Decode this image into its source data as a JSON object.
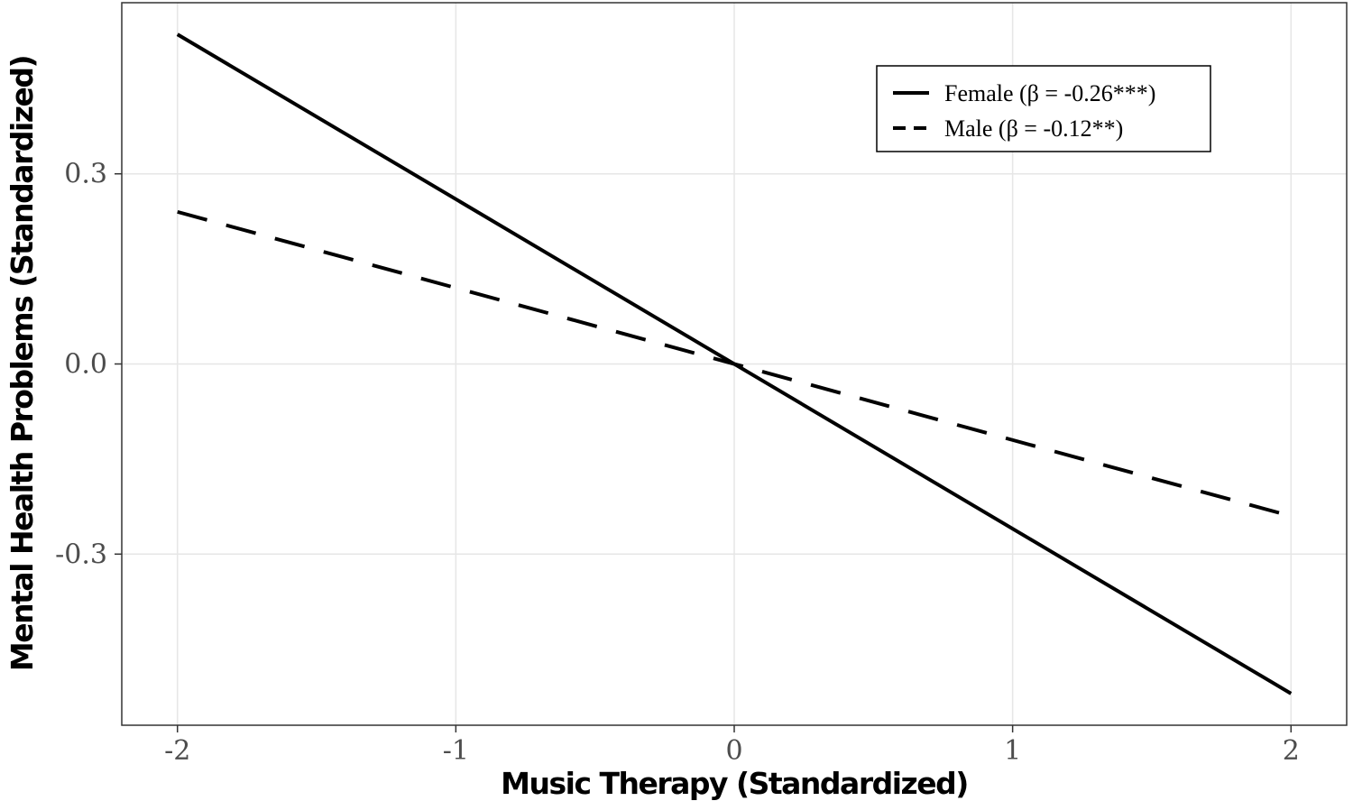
{
  "chart_data": {
    "type": "line",
    "xlabel": "Music Therapy (Standardized)",
    "ylabel": "Mental Health Problems (Standardized)",
    "xlim": [
      -2.2,
      2.2
    ],
    "ylim": [
      -0.57,
      0.57
    ],
    "x_ticks": [
      -2,
      -1,
      0,
      1,
      2
    ],
    "x_tick_labels": [
      "-2",
      "-1",
      "0",
      "1",
      "2"
    ],
    "y_ticks": [
      -0.3,
      0.0,
      0.3
    ],
    "y_tick_labels": [
      "-0.3",
      "0.0",
      "0.3"
    ],
    "grid": true,
    "legend_position": "top-right",
    "series": [
      {
        "name": "Female (β = -0.26***)",
        "line_style": "solid",
        "x": [
          -2,
          2
        ],
        "y": [
          0.52,
          -0.52
        ]
      },
      {
        "name": "Male (β = -0.12**)",
        "line_style": "dashed",
        "x": [
          -2,
          2
        ],
        "y": [
          0.24,
          -0.24
        ]
      }
    ],
    "colors": {
      "line": "#000000",
      "grid": "#e6e6e6",
      "panel_border": "#333333"
    }
  }
}
